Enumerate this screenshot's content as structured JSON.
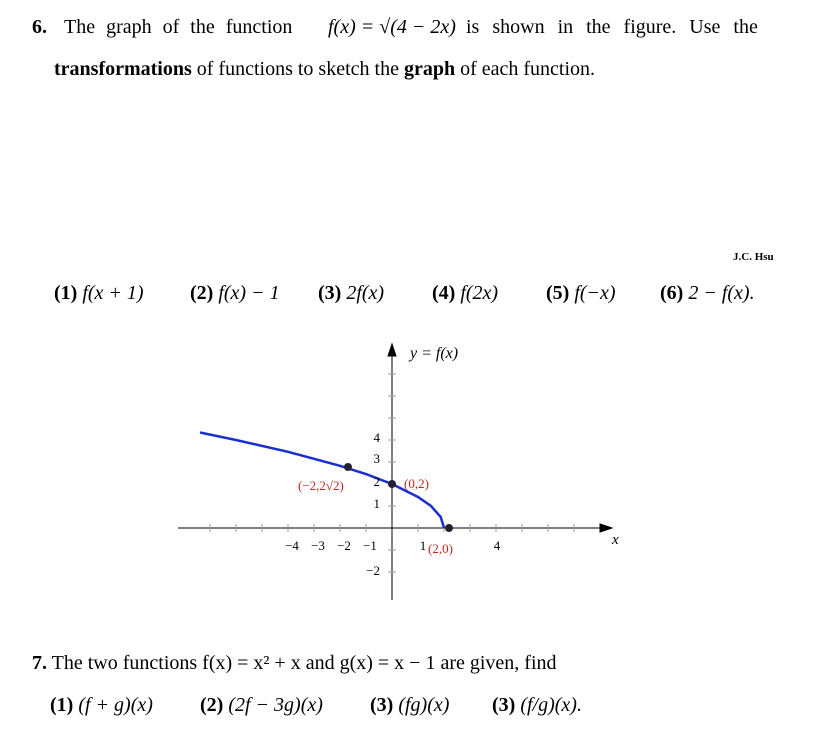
{
  "problem_6": {
    "number": "6.",
    "line_1_start": "The graph of the function",
    "formula": "f(x) = √(4 − 2x)",
    "line_1_end": "is shown in the figure. Use the",
    "line_2": [
      "transformations",
      " of functions to sketch the ",
      "graph",
      " of each function."
    ],
    "author": "J.C. Hsu",
    "items": [
      {
        "label": "(1)",
        "expr": "f(x + 1)"
      },
      {
        "label": "(2)",
        "expr": "f(x) − 1"
      },
      {
        "label": "(3)",
        "expr": "2f(x)"
      },
      {
        "label": "(4)",
        "expr": "f(2x)"
      },
      {
        "label": "(5)",
        "expr": "f(−x)"
      },
      {
        "label": "(6)",
        "expr": "2 − f(x)."
      }
    ],
    "figure": {
      "y_axis_label": "y = f(x)",
      "x_axis_label": "x",
      "x_tick_labels": [
        "−4",
        "−3",
        "−2",
        "−1",
        "1",
        "4"
      ],
      "y_tick_labels": [
        "4",
        "3",
        "2",
        "1",
        "−2"
      ],
      "point_labels": [
        "(−2,2√2)",
        "(0,2)",
        "(2,0)"
      ]
    }
  },
  "problem_7": {
    "number": "7.",
    "text": "The two functions f(x) = x² + x and g(x) = x − 1 are given, find",
    "items": [
      {
        "label": "(1)",
        "expr": "(f + g)(x)"
      },
      {
        "label": "(2)",
        "expr": "(2f − 3g)(x)"
      },
      {
        "label": "(3)",
        "expr": "(fg)(x)"
      },
      {
        "label": "(3)",
        "expr": "(f/g)(x)."
      }
    ]
  }
}
